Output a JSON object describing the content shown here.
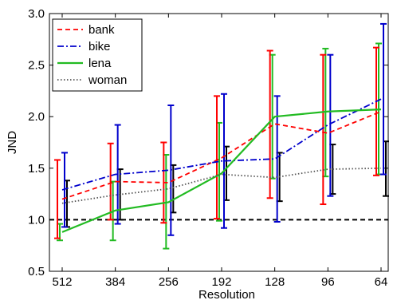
{
  "chart_data": {
    "type": "line",
    "title": "",
    "xlabel": "Resolution",
    "ylabel": "JND",
    "categories": [
      "512",
      "384",
      "256",
      "192",
      "128",
      "96",
      "64"
    ],
    "ylim": [
      0.5,
      3.0
    ],
    "yticks": [
      "0.5",
      "1.0",
      "1.5",
      "2.0",
      "2.5",
      "3.0"
    ],
    "grid": false,
    "legend_position": "top-left",
    "reference_line": {
      "y": 1.0,
      "style": "dashed",
      "color": "#000000"
    },
    "series": [
      {
        "name": "bank",
        "color": "#ff0000",
        "dash": "dashed",
        "values": [
          1.2,
          1.37,
          1.36,
          1.6,
          1.93,
          1.84,
          2.05
        ],
        "err_low": [
          0.82,
          1.0,
          0.97,
          1.01,
          1.21,
          1.15,
          1.43
        ],
        "err_high": [
          1.58,
          1.74,
          1.75,
          2.2,
          2.64,
          2.6,
          2.67
        ]
      },
      {
        "name": "bike",
        "color": "#0000cc",
        "dash": "dashdot",
        "values": [
          1.29,
          1.44,
          1.48,
          1.57,
          1.59,
          1.92,
          2.17
        ],
        "err_low": [
          0.93,
          0.96,
          0.85,
          0.92,
          0.98,
          1.23,
          1.44
        ],
        "err_high": [
          1.65,
          1.92,
          2.11,
          2.22,
          2.2,
          2.6,
          2.9
        ]
      },
      {
        "name": "lena",
        "color": "#22bb22",
        "dash": "solid",
        "values": [
          0.88,
          1.09,
          1.17,
          1.45,
          2.0,
          2.05,
          2.07
        ],
        "err_low": [
          0.8,
          0.8,
          0.72,
          0.99,
          1.4,
          1.42,
          1.44
        ],
        "err_high": [
          0.96,
          1.37,
          1.63,
          1.94,
          2.6,
          2.66,
          2.71
        ]
      },
      {
        "name": "woman",
        "color": "#555555",
        "dash": "dotted",
        "values": [
          1.16,
          1.24,
          1.3,
          1.44,
          1.41,
          1.49,
          1.5
        ],
        "err_low": [
          0.93,
          1.0,
          1.07,
          1.19,
          1.18,
          1.25,
          1.23
        ],
        "err_high": [
          1.38,
          1.49,
          1.53,
          1.71,
          1.65,
          1.73,
          1.76
        ]
      }
    ]
  }
}
